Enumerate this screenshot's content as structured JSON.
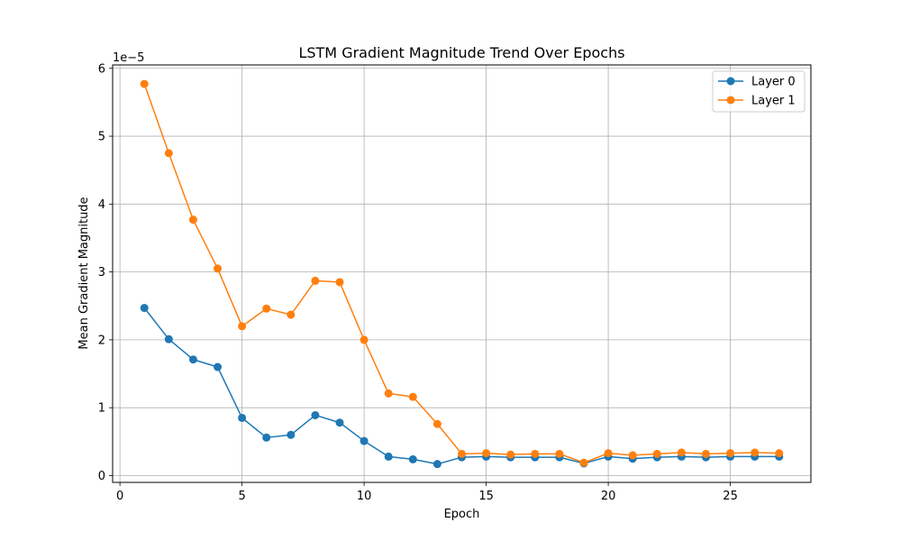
{
  "chart_data": {
    "type": "line",
    "title": "LSTM Gradient Magnitude Trend Over Epochs",
    "xlabel": "Epoch",
    "ylabel": "Mean Gradient Magnitude",
    "y_scale_label": "1e−5",
    "y_scale": 1e-05,
    "xlim": [
      -0.3,
      28.3
    ],
    "ylim": [
      -0.1,
      6.05
    ],
    "x_ticks": [
      0,
      5,
      10,
      15,
      20,
      25
    ],
    "y_ticks": [
      0,
      1,
      2,
      3,
      4,
      5,
      6
    ],
    "x_tick_labels": [
      "0",
      "5",
      "10",
      "15",
      "20",
      "25"
    ],
    "y_tick_labels": [
      "0",
      "1",
      "2",
      "3",
      "4",
      "5",
      "6"
    ],
    "grid": true,
    "legend_position": "top-right",
    "x": [
      1,
      2,
      3,
      4,
      5,
      6,
      7,
      8,
      9,
      10,
      11,
      12,
      13,
      14,
      15,
      16,
      17,
      18,
      19,
      20,
      21,
      22,
      23,
      24,
      25,
      26,
      27
    ],
    "series": [
      {
        "name": "Layer 0",
        "color": "#1f77b4",
        "values": [
          2.47,
          2.01,
          1.71,
          1.6,
          0.85,
          0.56,
          0.6,
          0.89,
          0.78,
          0.51,
          0.28,
          0.24,
          0.17,
          0.27,
          0.28,
          0.27,
          0.27,
          0.27,
          0.18,
          0.28,
          0.25,
          0.27,
          0.28,
          0.27,
          0.28,
          0.28,
          0.28
        ]
      },
      {
        "name": "Layer 1",
        "color": "#ff7f0e",
        "values": [
          5.77,
          4.75,
          3.77,
          3.05,
          2.2,
          2.46,
          2.37,
          2.87,
          2.85,
          2.0,
          1.21,
          1.16,
          0.76,
          0.32,
          0.33,
          0.31,
          0.32,
          0.32,
          0.19,
          0.33,
          0.3,
          0.32,
          0.34,
          0.32,
          0.33,
          0.34,
          0.33
        ]
      }
    ]
  }
}
